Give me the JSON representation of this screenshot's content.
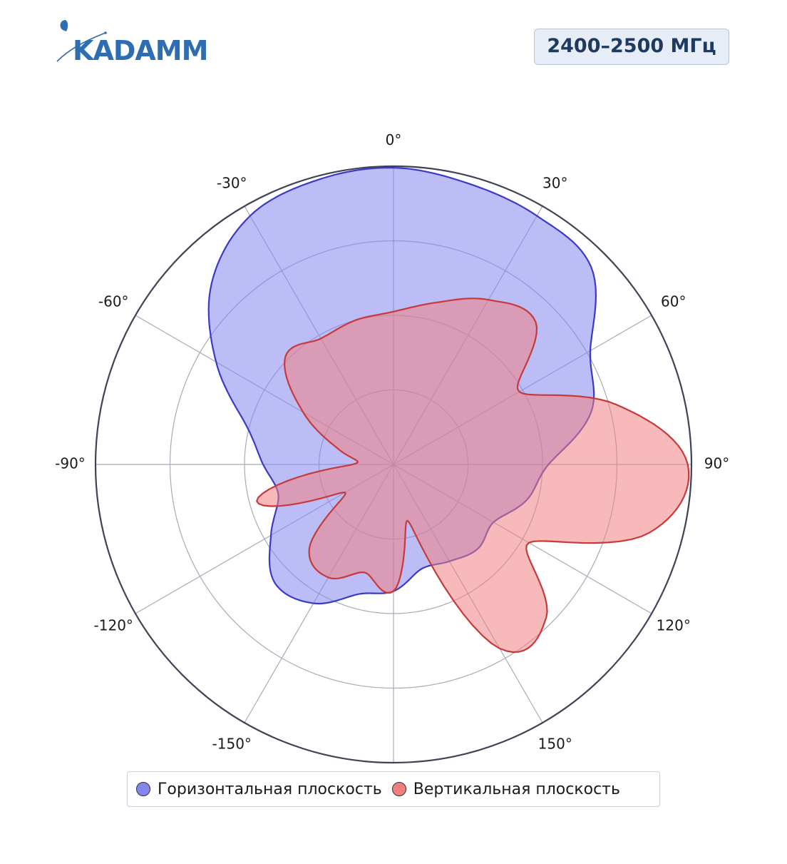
{
  "logo": {
    "text": "KADAMM"
  },
  "badge": {
    "text": "2400–2500 МГц"
  },
  "colors": {
    "horizontal_fill": "#8585f0",
    "horizontal_stroke": "#3a3ac8",
    "vertical_fill": "#f08080",
    "vertical_stroke": "#c83a3a",
    "axis": "#3e4356",
    "grid": "#a8abb8",
    "logo": "#2f6db3"
  },
  "chart_data": {
    "type": "polar-area",
    "angular_ticks": [
      "0°",
      "30°",
      "60°",
      "90°",
      "120°",
      "150°",
      "-150°",
      "-120°",
      "-90°",
      "-60°",
      "-30°"
    ],
    "angular_tick_values": [
      0,
      30,
      60,
      90,
      120,
      150,
      -150,
      -120,
      -90,
      -60,
      -30
    ],
    "radial_range": [
      0,
      4
    ],
    "radial_grid": [
      1,
      2,
      3,
      4
    ],
    "legend_placement": "bottom",
    "series": [
      {
        "name": "Горизонтальная плоскость",
        "angles_deg": [
          0,
          15,
          30,
          45,
          60,
          75,
          90,
          105,
          120,
          135,
          150,
          165,
          180,
          195,
          210,
          225,
          240,
          255,
          270,
          285,
          300,
          315,
          330,
          345
        ],
        "values": [
          3.98,
          3.9,
          3.85,
          3.75,
          3.05,
          2.75,
          2.08,
          1.85,
          1.55,
          1.6,
          1.5,
          1.45,
          1.7,
          1.8,
          2.15,
          2.25,
          1.9,
          1.6,
          1.75,
          2.05,
          2.75,
          3.45,
          3.85,
          3.95
        ]
      },
      {
        "name": "Вертикальная плоскость",
        "angles_deg": [
          0,
          15,
          30,
          45,
          60,
          75,
          90,
          105,
          120,
          135,
          150,
          165,
          180,
          195,
          210,
          225,
          240,
          255,
          270,
          285,
          300,
          315,
          330,
          345
        ],
        "values": [
          2.05,
          2.25,
          2.55,
          2.7,
          1.95,
          3.1,
          3.95,
          3.55,
          2.1,
          2.9,
          2.85,
          0.8,
          1.7,
          1.5,
          1.75,
          1.6,
          0.75,
          1.9,
          0.55,
          0.75,
          1.4,
          2.05,
          1.95,
          2.0
        ]
      }
    ]
  }
}
